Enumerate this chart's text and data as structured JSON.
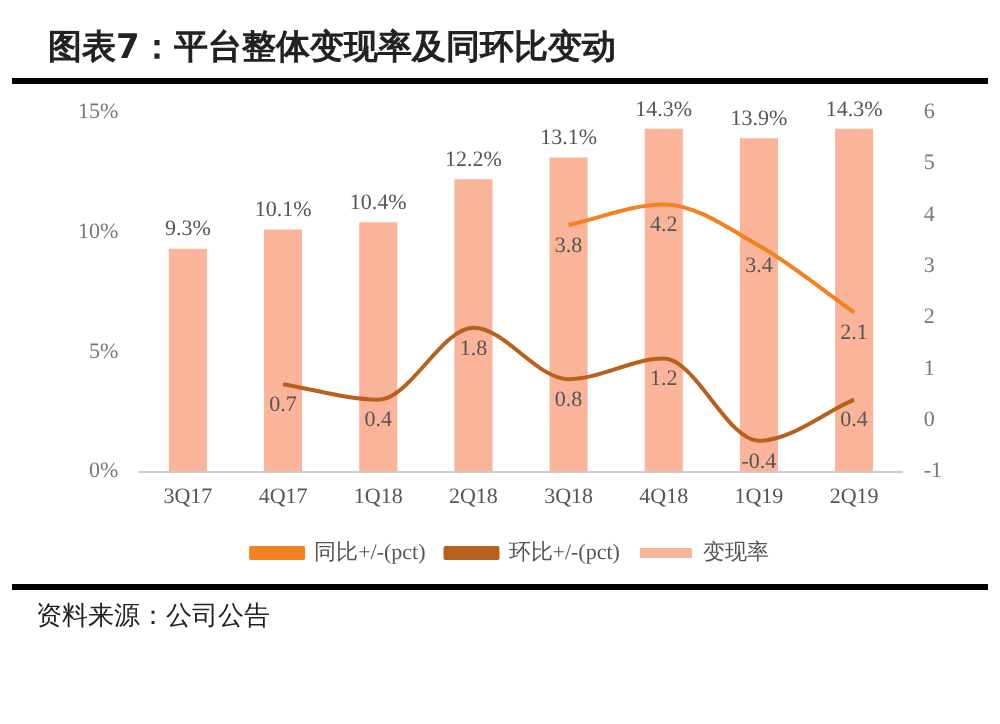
{
  "chart_data": {
    "type": "bar",
    "title": "图表7：平台整体变现率及同环比变动",
    "categories": [
      "3Q17",
      "4Q17",
      "1Q18",
      "2Q18",
      "3Q18",
      "4Q18",
      "1Q19",
      "2Q19"
    ],
    "series": [
      {
        "name": "变现率",
        "color": "#f9b49a",
        "values": [
          9.3,
          10.1,
          10.4,
          12.2,
          13.1,
          14.3,
          13.9,
          14.3
        ],
        "value_labels": [
          "9.3%",
          "10.1%",
          "10.4%",
          "12.2%",
          "13.1%",
          "14.3%",
          "13.9%",
          "14.3%"
        ]
      },
      {
        "name": "同比+/-(pct)",
        "type": "line",
        "axis": "y2",
        "color": "#f4811f",
        "values": [
          null,
          null,
          null,
          null,
          3.8,
          4.2,
          3.4,
          2.1
        ],
        "value_labels": [
          null,
          null,
          null,
          null,
          "3.8",
          "4.2",
          "3.4",
          "2.1"
        ]
      },
      {
        "name": "环比+/-(pct)",
        "type": "line",
        "axis": "y2",
        "color": "#b8601c",
        "values": [
          null,
          0.7,
          0.4,
          1.8,
          0.8,
          1.2,
          -0.4,
          0.4
        ],
        "value_labels": [
          null,
          "0.7",
          "0.4",
          "1.8",
          "0.8",
          "1.2",
          "-0.4",
          "0.4"
        ]
      }
    ],
    "ylim": [
      0,
      15
    ],
    "yticks": [
      {
        "value": 0,
        "label": "0%"
      },
      {
        "value": 5,
        "label": "5%"
      },
      {
        "value": 10,
        "label": "10%"
      },
      {
        "value": 15,
        "label": "15%"
      }
    ],
    "y2lim": [
      -1,
      6
    ],
    "y2ticks": [
      -1,
      0,
      1,
      2,
      3,
      4,
      5,
      6
    ],
    "grid": false,
    "legend": "bottom",
    "marker": "none",
    "annotations": [
      "资料来源：公司公告"
    ]
  }
}
